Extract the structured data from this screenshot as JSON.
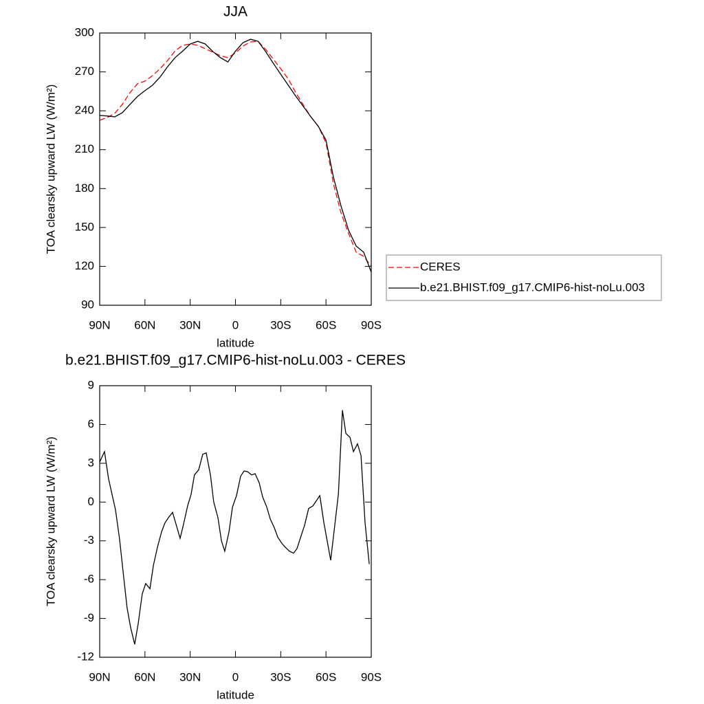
{
  "chart_data": [
    {
      "type": "line",
      "title": "JJA",
      "xlabel": "latitude",
      "ylabel": "TOA clearsky upward LW (W/m²)",
      "x": [
        90,
        85,
        80,
        75,
        70,
        65,
        60,
        55,
        50,
        45,
        40,
        35,
        30,
        25,
        20,
        15,
        10,
        5,
        0,
        -5,
        -10,
        -15,
        -20,
        -25,
        -30,
        -35,
        -40,
        -45,
        -50,
        -55,
        -60,
        -65,
        -70,
        -75,
        -80,
        -85,
        -90
      ],
      "series": [
        {
          "name": "CERES",
          "color": "#ff0000",
          "line_style": "dashed",
          "values": [
            232.7,
            234.8,
            238,
            244.9,
            253.9,
            260.8,
            262.9,
            267.1,
            272.4,
            278.8,
            286.2,
            290.5,
            291.5,
            290.5,
            287.8,
            285.2,
            282.5,
            280.9,
            284.6,
            289.9,
            293.1,
            293.6,
            287.3,
            279.9,
            272.4,
            264.5,
            253.9,
            244.3,
            235.3,
            227.9,
            215.2,
            183.4,
            161.1,
            145.2,
            130.9,
            127.7,
            120.2
          ]
        },
        {
          "name": "b.e21.BHIST.f09_g17.CMIP6-hist-noLu.003",
          "color": "#000000",
          "line_style": "solid",
          "values": [
            236.4,
            236,
            235.3,
            238.5,
            244.8,
            251,
            255.5,
            259.7,
            266,
            274,
            281,
            286,
            291.5,
            293.6,
            291.5,
            285.7,
            281,
            277.7,
            286,
            292.6,
            295.2,
            293.6,
            285.7,
            276.7,
            268.2,
            259.7,
            251.2,
            243.3,
            235.3,
            227.9,
            217.3,
            188.6,
            166.4,
            147.8,
            135.6,
            130.9,
            115.5
          ]
        }
      ],
      "xlim": [
        90,
        -90
      ],
      "xticks": [
        {
          "value": 90,
          "label": "90N"
        },
        {
          "value": 60,
          "label": "60N"
        },
        {
          "value": 30,
          "label": "30N"
        },
        0,
        {
          "value": -30,
          "label": "30S"
        },
        {
          "value": -60,
          "label": "60S"
        },
        {
          "value": -90,
          "label": "90S"
        }
      ],
      "ylim": [
        90,
        300
      ],
      "yticks": [
        90,
        120,
        150,
        180,
        210,
        240,
        270,
        300
      ],
      "legend": "right"
    },
    {
      "type": "line",
      "title": "b.e21.BHIST.f09_g17.CMIP6-hist-noLu.003 - CERES",
      "xlabel": "latitude",
      "ylabel": "TOA clearsky upward LW (W/m²)",
      "x": [
        90,
        86.8,
        84.1,
        79.5,
        76.8,
        74.1,
        71.8,
        69.5,
        66.8,
        64.5,
        61.8,
        59.5,
        56.7,
        54.4,
        51.7,
        49,
        46.7,
        44.4,
        41.7,
        39.4,
        36.7,
        34.4,
        31.7,
        29.4,
        27.2,
        24.4,
        21.7,
        19.4,
        16.6,
        14.4,
        11.6,
        9.3,
        7.1,
        4.3,
        2,
        -0.7,
        -3.4,
        -5.7,
        -8,
        -10.7,
        -13,
        -15.7,
        -18,
        -20.8,
        -23,
        -25.8,
        -28,
        -30.8,
        -33.1,
        -35.8,
        -38.5,
        -40.8,
        -43.5,
        -45.8,
        -48.5,
        -51.3,
        -55.9,
        -58.6,
        -63.1,
        -68.2,
        -70.9,
        -73.2,
        -75.9,
        -78.2,
        -80.9,
        -83.2,
        -85.9,
        -88.7
      ],
      "series": [
        {
          "color": "#000000",
          "line_style": "solid",
          "values": [
            3.1,
            3.9,
            1.8,
            -0.6,
            -2.9,
            -5.8,
            -8.2,
            -9.7,
            -11,
            -9.4,
            -7.1,
            -6.3,
            -6.7,
            -4.9,
            -3.5,
            -2.3,
            -1.6,
            -1.2,
            -0.8,
            -1.7,
            -2.8,
            -1.7,
            -0.3,
            0.6,
            2.1,
            2.5,
            3.7,
            3.8,
            2.1,
            0,
            -1.2,
            -3,
            -3.8,
            -2.3,
            -0.4,
            0.5,
            2,
            2.4,
            2.35,
            2.1,
            2.2,
            1.5,
            0.4,
            -0.4,
            -1.3,
            -2,
            -2.7,
            -3.2,
            -3.5,
            -3.8,
            -3.95,
            -3.6,
            -2.6,
            -1.8,
            -0.5,
            -0.3,
            0.5,
            -1.6,
            -4.5,
            0.6,
            7.1,
            5.3,
            5,
            3.9,
            4.5,
            3.6,
            -1.6,
            -4.8
          ]
        }
      ],
      "xlim": [
        90,
        -90
      ],
      "xticks": [
        {
          "value": 90,
          "label": "90N"
        },
        {
          "value": 60,
          "label": "60N"
        },
        {
          "value": 30,
          "label": "30N"
        },
        0,
        {
          "value": -30,
          "label": "30S"
        },
        {
          "value": -60,
          "label": "60S"
        },
        {
          "value": -90,
          "label": "90S"
        }
      ],
      "ylim": [
        -12,
        9
      ],
      "yticks": [
        -12,
        -9,
        -6,
        -3,
        0,
        3,
        6,
        9
      ]
    }
  ]
}
